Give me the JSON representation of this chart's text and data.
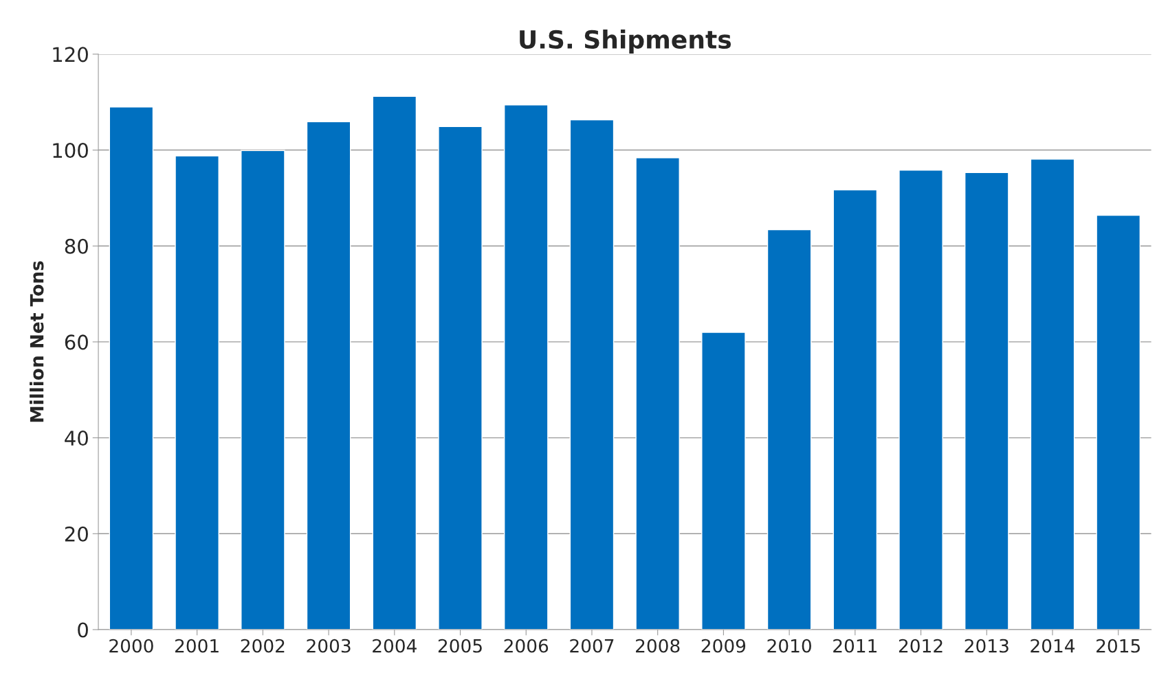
{
  "chart_data": {
    "type": "bar",
    "title": "U.S. Shipments",
    "ylabel": "Million Net Tons",
    "categories": [
      "2000",
      "2001",
      "2002",
      "2003",
      "2004",
      "2005",
      "2006",
      "2007",
      "2008",
      "2009",
      "2010",
      "2011",
      "2012",
      "2013",
      "2014",
      "2015"
    ],
    "values": [
      109.0,
      98.8,
      99.9,
      105.9,
      111.2,
      104.9,
      109.4,
      106.3,
      98.4,
      62.0,
      83.4,
      91.7,
      95.8,
      95.3,
      98.1,
      86.4
    ],
    "color": "#0070c0",
    "ylim": [
      0,
      120
    ],
    "yticks": [
      0,
      20,
      40,
      60,
      80,
      100,
      120
    ],
    "grid": "y",
    "legend": false
  }
}
